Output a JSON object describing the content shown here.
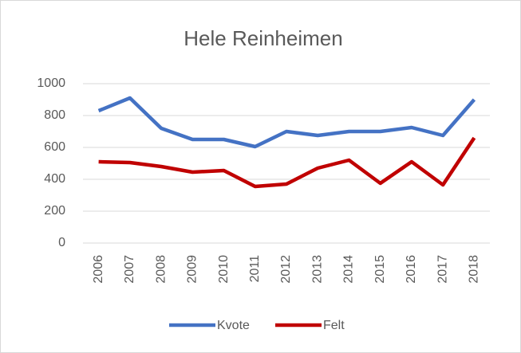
{
  "chart_data": {
    "type": "line",
    "title": "Hele Reinheimen",
    "categories": [
      "2006",
      "2007",
      "2008",
      "2009",
      "2010",
      "2011",
      "2012",
      "2013",
      "2014",
      "2015",
      "2016",
      "2017",
      "2018"
    ],
    "series": [
      {
        "name": "Kvote",
        "color": "#4472c4",
        "values": [
          830,
          910,
          720,
          650,
          650,
          605,
          700,
          675,
          700,
          700,
          725,
          675,
          900
        ]
      },
      {
        "name": "Felt",
        "color": "#c00000",
        "values": [
          510,
          505,
          480,
          445,
          455,
          355,
          370,
          470,
          520,
          375,
          510,
          365,
          660
        ]
      }
    ],
    "ylim": [
      0,
      1000
    ],
    "yticks": [
      0,
      200,
      400,
      600,
      800,
      1000
    ],
    "grid": true,
    "legend": "bottom"
  }
}
